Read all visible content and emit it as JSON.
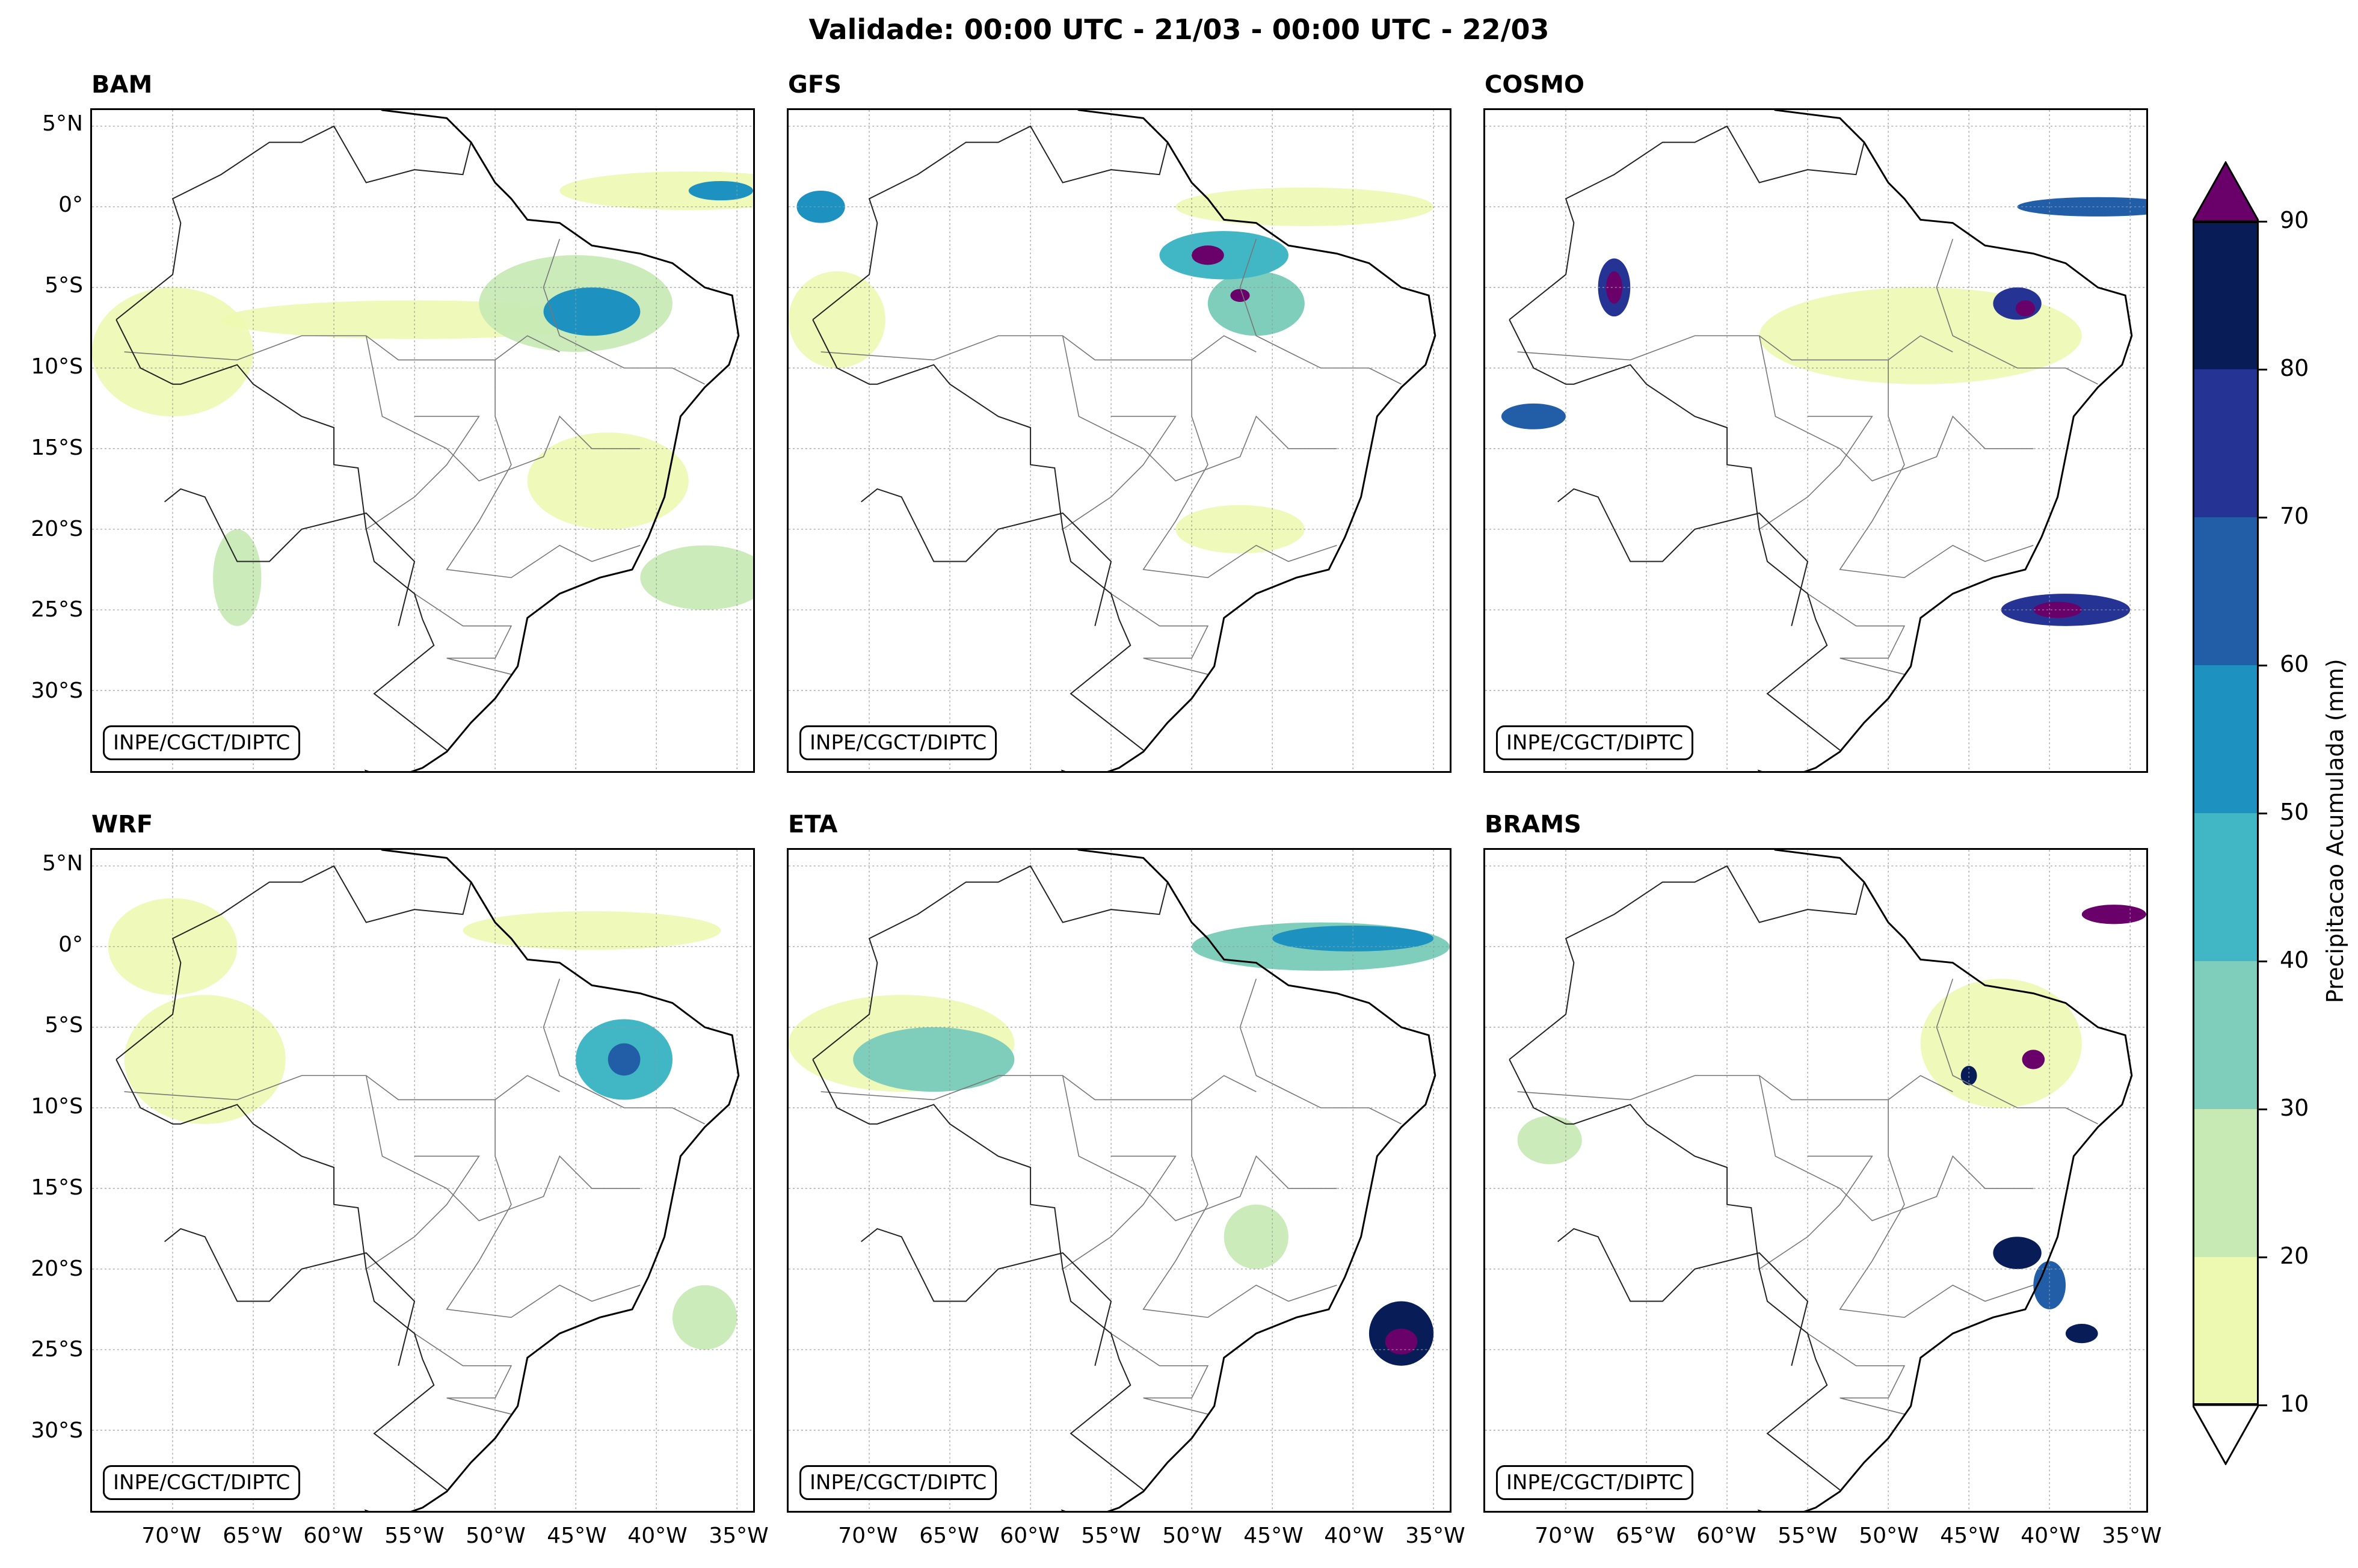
{
  "title": "Validade: 00:00 UTC - 21/03 - 00:00 UTC - 22/03",
  "credit": "INPE/CGCT/DIPTC",
  "panels": [
    {
      "name": "BAM",
      "blobs": [
        {
          "lon": -45,
          "lat": -6,
          "rx": 6,
          "ry": 3,
          "level": 2
        },
        {
          "lon": -44,
          "lat": -6.5,
          "rx": 3,
          "ry": 1.5,
          "level": 5
        },
        {
          "lon": -38,
          "lat": 1,
          "rx": 8,
          "ry": 1.2,
          "level": 1
        },
        {
          "lon": -36,
          "lat": 1,
          "rx": 2,
          "ry": 0.6,
          "level": 5
        },
        {
          "lon": -55,
          "lat": -7,
          "rx": 12,
          "ry": 1.2,
          "level": 1
        },
        {
          "lon": -70,
          "lat": -9,
          "rx": 5,
          "ry": 4,
          "level": 1
        },
        {
          "lon": -37,
          "lat": -23,
          "rx": 4,
          "ry": 2,
          "level": 2
        },
        {
          "lon": -43,
          "lat": -17,
          "rx": 5,
          "ry": 3,
          "level": 1
        },
        {
          "lon": -66,
          "lat": -23,
          "rx": 1.5,
          "ry": 3,
          "level": 2
        }
      ]
    },
    {
      "name": "GFS",
      "blobs": [
        {
          "lon": -48,
          "lat": -3,
          "rx": 4,
          "ry": 1.5,
          "level": 4
        },
        {
          "lon": -49,
          "lat": -3,
          "rx": 1,
          "ry": 0.6,
          "level": 9
        },
        {
          "lon": -46,
          "lat": -6,
          "rx": 3,
          "ry": 2,
          "level": 3
        },
        {
          "lon": -47,
          "lat": -5.5,
          "rx": 0.6,
          "ry": 0.4,
          "level": 9
        },
        {
          "lon": -43,
          "lat": 0,
          "rx": 8,
          "ry": 1.2,
          "level": 1
        },
        {
          "lon": -73,
          "lat": 0,
          "rx": 1.5,
          "ry": 1,
          "level": 5
        },
        {
          "lon": -72,
          "lat": -7,
          "rx": 3,
          "ry": 3,
          "level": 1
        },
        {
          "lon": -47,
          "lat": -20,
          "rx": 4,
          "ry": 1.5,
          "level": 1
        }
      ]
    },
    {
      "name": "COSMO",
      "blobs": [
        {
          "lon": -67,
          "lat": -5,
          "rx": 1,
          "ry": 1.8,
          "level": 7
        },
        {
          "lon": -67,
          "lat": -5,
          "rx": 0.5,
          "ry": 1,
          "level": 9
        },
        {
          "lon": -42,
          "lat": -6,
          "rx": 1.5,
          "ry": 1,
          "level": 7
        },
        {
          "lon": -41.5,
          "lat": -6.3,
          "rx": 0.6,
          "ry": 0.5,
          "level": 9
        },
        {
          "lon": -37,
          "lat": 0,
          "rx": 5,
          "ry": 0.6,
          "level": 6
        },
        {
          "lon": -39,
          "lat": -25,
          "rx": 4,
          "ry": 1,
          "level": 7
        },
        {
          "lon": -39.5,
          "lat": -25,
          "rx": 1.5,
          "ry": 0.5,
          "level": 9
        },
        {
          "lon": -72,
          "lat": -13,
          "rx": 2,
          "ry": 0.8,
          "level": 6
        },
        {
          "lon": -48,
          "lat": -8,
          "rx": 10,
          "ry": 3,
          "level": 1
        }
      ]
    },
    {
      "name": "WRF",
      "blobs": [
        {
          "lon": -42,
          "lat": -7,
          "rx": 3,
          "ry": 2.5,
          "level": 4
        },
        {
          "lon": -42,
          "lat": -7,
          "rx": 1,
          "ry": 1,
          "level": 6
        },
        {
          "lon": -44,
          "lat": 1,
          "rx": 8,
          "ry": 1.2,
          "level": 1
        },
        {
          "lon": -70,
          "lat": 0,
          "rx": 4,
          "ry": 3,
          "level": 1
        },
        {
          "lon": -37,
          "lat": -23,
          "rx": 2,
          "ry": 2,
          "level": 2
        },
        {
          "lon": -68,
          "lat": -7,
          "rx": 5,
          "ry": 4,
          "level": 1
        }
      ]
    },
    {
      "name": "ETA",
      "blobs": [
        {
          "lon": -42,
          "lat": 0,
          "rx": 8,
          "ry": 1.5,
          "level": 3
        },
        {
          "lon": -40,
          "lat": 0.5,
          "rx": 5,
          "ry": 0.8,
          "level": 5
        },
        {
          "lon": -37,
          "lat": -24,
          "rx": 2,
          "ry": 2,
          "level": 8
        },
        {
          "lon": -37,
          "lat": -24.5,
          "rx": 1,
          "ry": 0.8,
          "level": 9
        },
        {
          "lon": -66,
          "lat": -7,
          "rx": 5,
          "ry": 2,
          "level": 3
        },
        {
          "lon": -68,
          "lat": -6,
          "rx": 7,
          "ry": 3,
          "level": 1
        },
        {
          "lon": -46,
          "lat": -18,
          "rx": 2,
          "ry": 2,
          "level": 2
        }
      ]
    },
    {
      "name": "BRAMS",
      "blobs": [
        {
          "lon": -36,
          "lat": 2,
          "rx": 2,
          "ry": 0.6,
          "level": 9
        },
        {
          "lon": -42,
          "lat": -19,
          "rx": 1.5,
          "ry": 1,
          "level": 8
        },
        {
          "lon": -40,
          "lat": -21,
          "rx": 1,
          "ry": 1.5,
          "level": 6
        },
        {
          "lon": -38,
          "lat": -24,
          "rx": 1,
          "ry": 0.6,
          "level": 8
        },
        {
          "lon": -41,
          "lat": -7,
          "rx": 0.7,
          "ry": 0.6,
          "level": 9
        },
        {
          "lon": -45,
          "lat": -8,
          "rx": 0.5,
          "ry": 0.6,
          "level": 8
        },
        {
          "lon": -43,
          "lat": -6,
          "rx": 5,
          "ry": 4,
          "level": 1
        },
        {
          "lon": -71,
          "lat": -12,
          "rx": 2,
          "ry": 1.5,
          "level": 2
        }
      ]
    }
  ],
  "axes": {
    "lon_min": -75,
    "lon_max": -34,
    "lat_min": -35,
    "lat_max": 6,
    "xticks": [
      {
        "value": -70,
        "label": "70°W"
      },
      {
        "value": -65,
        "label": "65°W"
      },
      {
        "value": -60,
        "label": "60°W"
      },
      {
        "value": -55,
        "label": "55°W"
      },
      {
        "value": -50,
        "label": "50°W"
      },
      {
        "value": -45,
        "label": "45°W"
      },
      {
        "value": -40,
        "label": "40°W"
      },
      {
        "value": -35,
        "label": "35°W"
      }
    ],
    "yticks": [
      {
        "value": 5,
        "label": "5°N"
      },
      {
        "value": 0,
        "label": "0°"
      },
      {
        "value": -5,
        "label": "5°S"
      },
      {
        "value": -10,
        "label": "10°S"
      },
      {
        "value": -15,
        "label": "15°S"
      },
      {
        "value": -20,
        "label": "20°S"
      },
      {
        "value": -25,
        "label": "25°S"
      },
      {
        "value": -30,
        "label": "30°S"
      }
    ]
  },
  "colorbar": {
    "title": "Precipitacao Acumulada (mm)",
    "levels": [
      "10",
      "20",
      "30",
      "40",
      "50",
      "60",
      "70",
      "80",
      "90"
    ],
    "colors": [
      "#edf8b1",
      "#c7e9b4",
      "#7fcdbb",
      "#41b6c4",
      "#1d91c0",
      "#225ea8",
      "#253494",
      "#081d58"
    ],
    "over_color": "#6a006a",
    "under_color": "#ffffff"
  },
  "colors": {
    "level_1": "#edf8b1",
    "level_2": "#c7e9b4",
    "level_3": "#7fcdbb",
    "level_4": "#41b6c4",
    "level_5": "#1d91c0",
    "level_6": "#225ea8",
    "level_7": "#253494",
    "level_8": "#081d58",
    "level_9": "#6a006a"
  }
}
